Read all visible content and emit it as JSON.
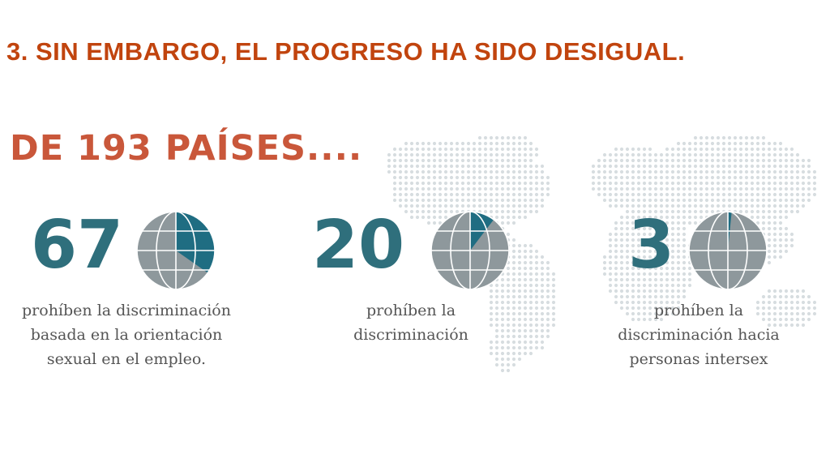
{
  "slide_title": "3. SIN EMBARGO, EL PROGRESO HA SIDO DESIGUAL.",
  "colors": {
    "title": "#c1440e",
    "subtitle": "#c9573a",
    "number": "#2f6f7c",
    "globe_base": "#8e989c",
    "globe_highlight": "#1f6d82",
    "globe_lines": "#ffffff",
    "map_dots": "#d7dde0",
    "caption": "#555555"
  },
  "chart_data": {
    "type": "pie",
    "subtitle": "DE 193 PAÍSES....",
    "total": 193,
    "items": [
      {
        "value": 67,
        "label": "67",
        "caption": [
          "prohíben la discriminación",
          "basada en la orientación",
          "sexual en el empleo."
        ]
      },
      {
        "value": 20,
        "label": "20",
        "caption": [
          "prohíben la",
          "discriminación"
        ]
      },
      {
        "value": 3,
        "label": "3",
        "caption": [
          "prohíben la",
          "discriminación hacia",
          "personas intersex"
        ]
      }
    ]
  }
}
